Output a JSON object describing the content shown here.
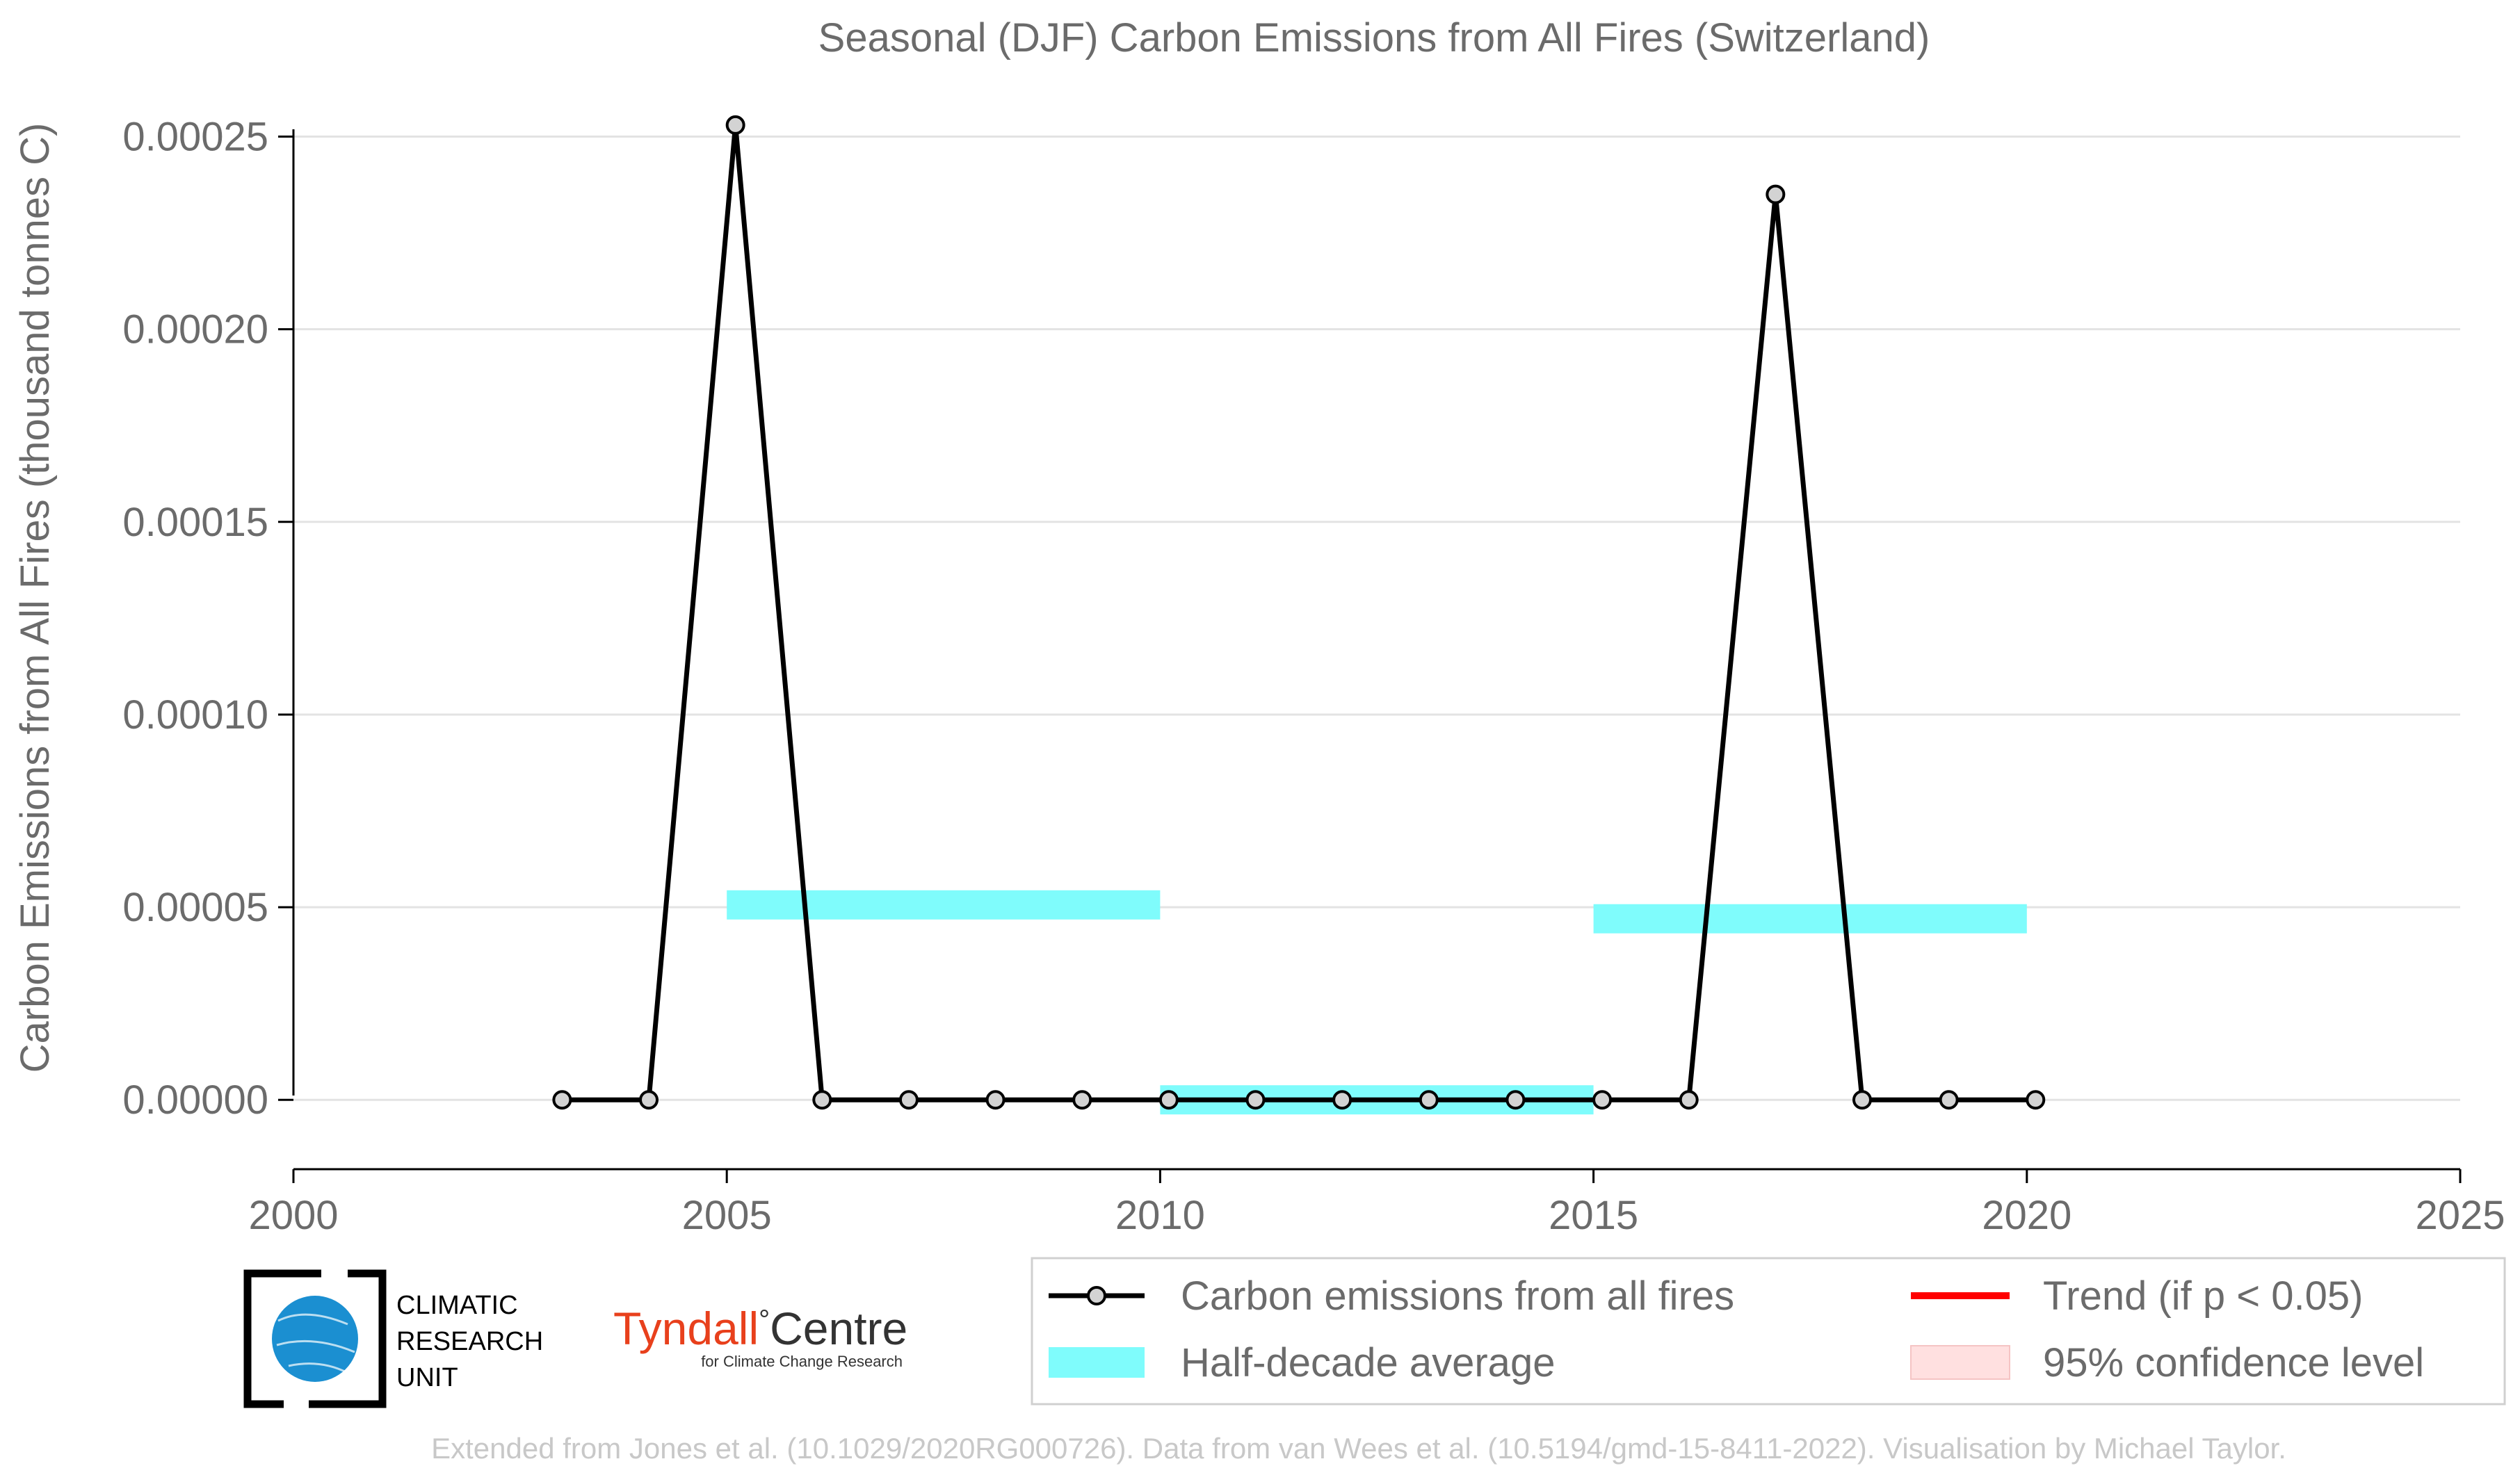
{
  "chart_data": {
    "type": "line",
    "title": "Seasonal (DJF) Carbon Emissions from All Fires (Switzerland)",
    "xlabel": "",
    "ylabel": "Carbon Emissions from All Fires (thousand tonnes C)",
    "xlim": [
      2000,
      2025
    ],
    "ylim": [
      -1.8e-05,
      0.000262
    ],
    "x_ticks": [
      2000,
      2005,
      2010,
      2015,
      2020,
      2025
    ],
    "x_tick_labels": [
      "2000",
      "2005",
      "2010",
      "2015",
      "2020",
      "2025"
    ],
    "y_ticks": [
      0,
      5e-05,
      0.0001,
      0.00015,
      0.0002,
      0.00025
    ],
    "y_tick_labels": [
      "0.00000",
      "0.00005",
      "0.00010",
      "0.00015",
      "0.00020",
      "0.00025"
    ],
    "grid": "horizontal",
    "legend_position": "bottom-right",
    "series": [
      {
        "name": "Carbon emissions from all fires",
        "kind": "line-marker",
        "color": "#000000",
        "marker_fill": "#d3d3d3",
        "x": [
          2003.1,
          2004.1,
          2005.1,
          2006.1,
          2007.1,
          2008.1,
          2009.1,
          2010.1,
          2011.1,
          2012.1,
          2013.1,
          2014.1,
          2015.1,
          2016.1,
          2017.1,
          2018.1,
          2019.1,
          2020.1
        ],
        "values": [
          0,
          0,
          0.000253,
          0,
          0,
          0,
          0,
          0,
          0,
          0,
          0,
          0,
          0,
          0,
          0.000235,
          0,
          0,
          0
        ]
      },
      {
        "name": "Half-decade average",
        "kind": "band",
        "color": "#7ffcfc",
        "segments": [
          {
            "x0": 2005,
            "x1": 2010,
            "value": 5.06e-05
          },
          {
            "x0": 2010,
            "x1": 2015,
            "value": 0
          },
          {
            "x0": 2015,
            "x1": 2020,
            "value": 4.7e-05
          }
        ]
      },
      {
        "name": "Trend (if p < 0.05)",
        "kind": "legend-only",
        "color": "#ff0000"
      },
      {
        "name": "95% confidence level",
        "kind": "legend-only",
        "color": "#ffe0e0"
      }
    ]
  },
  "logos": {
    "cru_lines": [
      "CLIMATIC",
      "RESEARCH",
      "UNIT"
    ],
    "tyndall_word": "Tyndall",
    "tyndall_degree": "°",
    "tyndall_centre": "Centre",
    "tyndall_sub": "for Climate Change Research"
  },
  "credit": "Extended from Jones et al. (10.1029/2020RG000726). Data from van Wees et al. (10.5194/gmd-15-8411-2022). Visualisation by Michael Taylor."
}
